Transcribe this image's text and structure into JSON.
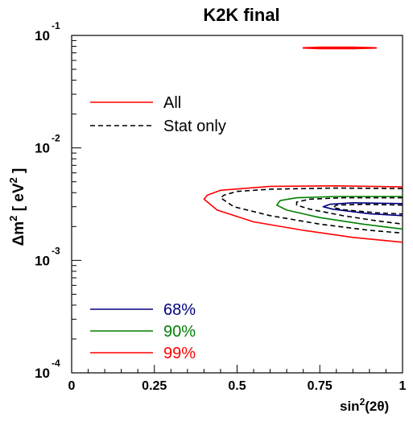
{
  "chart_data": {
    "type": "line",
    "title": "K2K final",
    "xlabel": "sin",
    "xlabel_sup": "2",
    "xlabel_arg": "(2θ)",
    "ylabel": "Δm",
    "ylabel_sup": "2",
    "ylabel_units": " [ eV",
    "ylabel_sup2": "2",
    "ylabel_close": " ]",
    "xlim": [
      0,
      1.0
    ],
    "ylim": [
      0.0001,
      0.1
    ],
    "yscale": "log",
    "grid": false,
    "x_ticks": [
      {
        "value": 0,
        "label": "0"
      },
      {
        "value": 0.25,
        "label": "0.25"
      },
      {
        "value": 0.5,
        "label": "0.5"
      },
      {
        "value": 0.75,
        "label": "0.75"
      },
      {
        "value": 1.0,
        "label": "1"
      }
    ],
    "y_ticks": [
      {
        "value": 0.1,
        "base": "10",
        "exp": "-1"
      },
      {
        "value": 0.01,
        "base": "10",
        "exp": "-2"
      },
      {
        "value": 0.001,
        "base": "10",
        "exp": "-3"
      },
      {
        "value": 0.0001,
        "base": "10",
        "exp": "-4"
      }
    ],
    "legend_top": [
      {
        "label": "All",
        "color": "#ff0000",
        "dash": "solid"
      },
      {
        "label": "Stat only",
        "color": "#000000",
        "dash": "dashed"
      }
    ],
    "legend_bottom": [
      {
        "label": "68%",
        "color": "#000080",
        "text_color": "#000080",
        "dash": "solid"
      },
      {
        "label": "90%",
        "color": "#008000",
        "text_color": "#008000",
        "dash": "solid"
      },
      {
        "label": "99%",
        "color": "#ff0000",
        "text_color": "#ff0000",
        "dash": "solid"
      }
    ],
    "series": [
      {
        "cl": "99%",
        "kind": "all",
        "color": "#ff0000",
        "dash": "solid",
        "closed": false,
        "points": [
          [
            1.0,
            0.0045
          ],
          [
            0.8,
            0.0046
          ],
          [
            0.6,
            0.00455
          ],
          [
            0.45,
            0.0042
          ],
          [
            0.41,
            0.0038
          ],
          [
            0.4,
            0.0035
          ],
          [
            0.44,
            0.0028
          ],
          [
            0.55,
            0.0022
          ],
          [
            0.7,
            0.00185
          ],
          [
            0.85,
            0.0016
          ],
          [
            1.0,
            0.00145
          ]
        ]
      },
      {
        "cl": "99%",
        "kind": "stat",
        "color": "#000000",
        "dash": "dashed",
        "closed": false,
        "points": [
          [
            1.0,
            0.00435
          ],
          [
            0.8,
            0.0044
          ],
          [
            0.6,
            0.0043
          ],
          [
            0.5,
            0.0041
          ],
          [
            0.46,
            0.0038
          ],
          [
            0.45,
            0.0036
          ],
          [
            0.49,
            0.003
          ],
          [
            0.6,
            0.0025
          ],
          [
            0.75,
            0.0021
          ],
          [
            0.9,
            0.00185
          ],
          [
            1.0,
            0.00175
          ]
        ]
      },
      {
        "cl": "90%",
        "kind": "all",
        "color": "#008000",
        "dash": "solid",
        "closed": false,
        "points": [
          [
            1.0,
            0.0037
          ],
          [
            0.8,
            0.0037
          ],
          [
            0.68,
            0.0036
          ],
          [
            0.63,
            0.0034
          ],
          [
            0.62,
            0.0031
          ],
          [
            0.65,
            0.0028
          ],
          [
            0.75,
            0.0024
          ],
          [
            0.88,
            0.0021
          ],
          [
            1.0,
            0.0019
          ]
        ]
      },
      {
        "cl": "90%",
        "kind": "stat",
        "color": "#000000",
        "dash": "dashed",
        "closed": false,
        "points": [
          [
            1.0,
            0.0036
          ],
          [
            0.82,
            0.0036
          ],
          [
            0.72,
            0.0035
          ],
          [
            0.68,
            0.0033
          ],
          [
            0.68,
            0.0031
          ],
          [
            0.72,
            0.00285
          ],
          [
            0.82,
            0.0025
          ],
          [
            0.92,
            0.00225
          ],
          [
            1.0,
            0.0021
          ]
        ]
      },
      {
        "cl": "68%",
        "kind": "all",
        "color": "#000080",
        "dash": "solid",
        "closed": false,
        "points": [
          [
            1.0,
            0.0032
          ],
          [
            0.85,
            0.00325
          ],
          [
            0.78,
            0.00315
          ],
          [
            0.76,
            0.003
          ],
          [
            0.79,
            0.00285
          ],
          [
            0.9,
            0.0026
          ],
          [
            1.0,
            0.0025
          ]
        ]
      },
      {
        "cl": "68%",
        "kind": "stat",
        "color": "#000000",
        "dash": "dashed",
        "closed": false,
        "points": [
          [
            1.0,
            0.0031
          ],
          [
            0.88,
            0.00315
          ],
          [
            0.8,
            0.0031
          ],
          [
            0.79,
            0.00295
          ],
          [
            0.82,
            0.00282
          ],
          [
            0.92,
            0.00265
          ],
          [
            1.0,
            0.00258
          ]
        ]
      },
      {
        "cl": "99%",
        "kind": "all",
        "color": "#ff0000",
        "dash": "solid",
        "closed": true,
        "points": [
          [
            0.7,
            0.0775
          ],
          [
            0.75,
            0.0765
          ],
          [
            0.85,
            0.0765
          ],
          [
            0.92,
            0.0775
          ],
          [
            0.85,
            0.0785
          ],
          [
            0.75,
            0.0785
          ]
        ]
      }
    ]
  }
}
